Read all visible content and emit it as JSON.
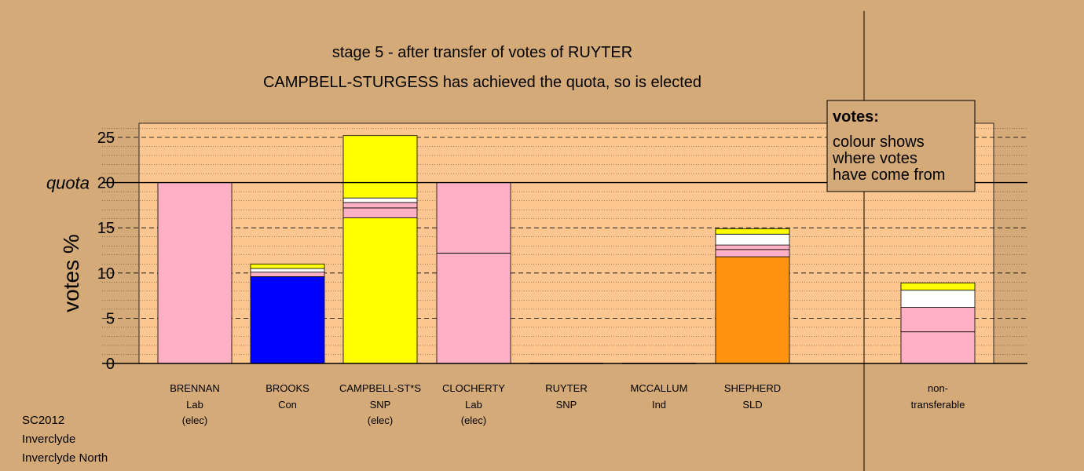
{
  "title_line1": "stage 5 - after transfer of votes of RUYTER",
  "title_line2": "CAMPBELL-STURGESS has achieved the quota, so is elected",
  "footer": [
    "SC2012",
    "Inverclyde",
    "Inverclyde North"
  ],
  "legend": {
    "title": "votes:",
    "lines": [
      "colour shows",
      "where votes",
      "have come from"
    ]
  },
  "colors": {
    "background": "#d4aa78",
    "plot_bg": "#fbc690",
    "Lab": "#ffb0c4",
    "Con": "#0000ff",
    "SNP": "#ffff00",
    "SLD": "#ff9410",
    "Ind": "#ffffff",
    "other": "#ffffff"
  },
  "chart_data": {
    "type": "bar",
    "stacked": true,
    "ylabel": "votes %",
    "ylim": [
      0,
      26.5
    ],
    "yticks": [
      0,
      5,
      10,
      15,
      20,
      25
    ],
    "quota": 20,
    "quota_label": "quota",
    "grid": true,
    "legend_position": "top-right",
    "categories": [
      {
        "name": "BRENNAN",
        "party": "Lab",
        "status": "(elec)"
      },
      {
        "name": "BROOKS",
        "party": "Con",
        "status": ""
      },
      {
        "name": "CAMPBELL-ST*S",
        "party": "SNP",
        "status": "(elec)"
      },
      {
        "name": "CLOCHERTY",
        "party": "Lab",
        "status": "(elec)"
      },
      {
        "name": "RUYTER",
        "party": "SNP",
        "status": ""
      },
      {
        "name": "MCCALLUM",
        "party": "Ind",
        "status": ""
      },
      {
        "name": "SHEPHERD",
        "party": "SLD",
        "status": ""
      },
      {
        "name": "non-",
        "party": "transferable",
        "status": ""
      }
    ],
    "stacks": [
      [
        {
          "from": "Lab",
          "value": 20.0
        }
      ],
      [
        {
          "from": "Con",
          "value": 9.6
        },
        {
          "from": "Lab",
          "value": 0.5
        },
        {
          "from": "Ind",
          "value": 0.4
        },
        {
          "from": "SNP",
          "value": 0.5
        }
      ],
      [
        {
          "from": "SNP",
          "value": 16.1
        },
        {
          "from": "Lab",
          "value": 1.1
        },
        {
          "from": "Lab",
          "value": 0.6
        },
        {
          "from": "Ind",
          "value": 0.5
        },
        {
          "from": "SNP",
          "value": 6.9
        }
      ],
      [
        {
          "from": "Lab",
          "value": 12.2
        },
        {
          "from": "Lab",
          "value": 7.8
        }
      ],
      [],
      [],
      [
        {
          "from": "SLD",
          "value": 11.8
        },
        {
          "from": "Lab",
          "value": 0.8
        },
        {
          "from": "Lab",
          "value": 0.5
        },
        {
          "from": "Ind",
          "value": 1.2
        },
        {
          "from": "SNP",
          "value": 0.6
        }
      ],
      [
        {
          "from": "Lab",
          "value": 3.5
        },
        {
          "from": "Lab",
          "value": 2.7
        },
        {
          "from": "Ind",
          "value": 1.9
        },
        {
          "from": "SNP",
          "value": 0.8
        }
      ]
    ]
  }
}
